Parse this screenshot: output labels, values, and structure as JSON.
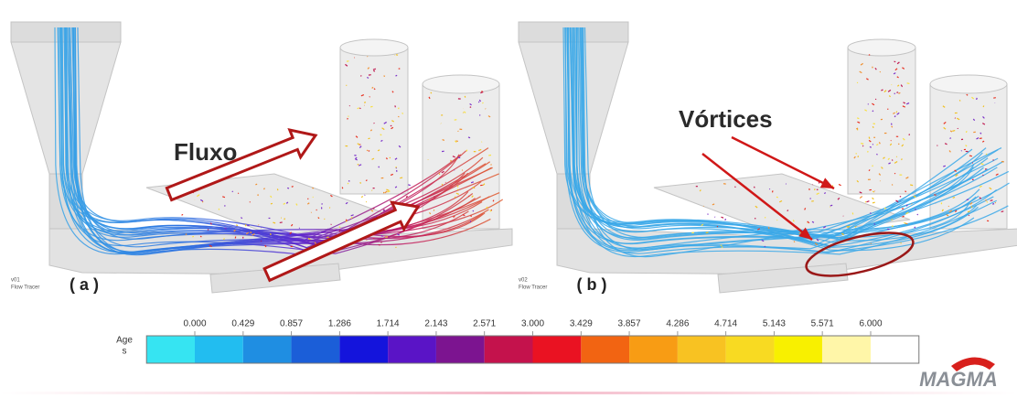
{
  "panels": [
    {
      "label": "( a )",
      "version": "v01",
      "tracer": "Flow Tracer",
      "annotation": "Fluxo"
    },
    {
      "label": "( b )",
      "version": "v02",
      "tracer": "Flow Tracer",
      "annotation": "Vórtices"
    }
  ],
  "legend": {
    "title": "Age",
    "unit": "s",
    "colors": [
      "#36e4f2",
      "#22bdf0",
      "#1f8ee2",
      "#1b5ed8",
      "#1414dc",
      "#5a14c6",
      "#7c1490",
      "#c4124c",
      "#ea1222",
      "#f26412",
      "#f89c14",
      "#f8c222",
      "#f8da22",
      "#f8f000",
      "#fff6a8",
      "#ffffff"
    ],
    "ticks": [
      {
        "value": 0,
        "label": "0.000"
      },
      {
        "value": 0.429,
        "label": "0.429"
      },
      {
        "value": 0.857,
        "label": "0.857"
      },
      {
        "value": 1.286,
        "label": "1.286"
      },
      {
        "value": 1.714,
        "label": "1.714"
      },
      {
        "value": 2.143,
        "label": "2.143"
      },
      {
        "value": 2.571,
        "label": "2.571"
      },
      {
        "value": 3,
        "label": "3.000"
      },
      {
        "value": 3.429,
        "label": "3.429"
      },
      {
        "value": 3.857,
        "label": "3.857"
      },
      {
        "value": 4.286,
        "label": "4.286"
      },
      {
        "value": 4.714,
        "label": "4.714"
      },
      {
        "value": 5.143,
        "label": "5.143"
      },
      {
        "value": 5.571,
        "label": "5.571"
      },
      {
        "value": 6,
        "label": "6.000"
      }
    ]
  },
  "logo": "MAGMA"
}
